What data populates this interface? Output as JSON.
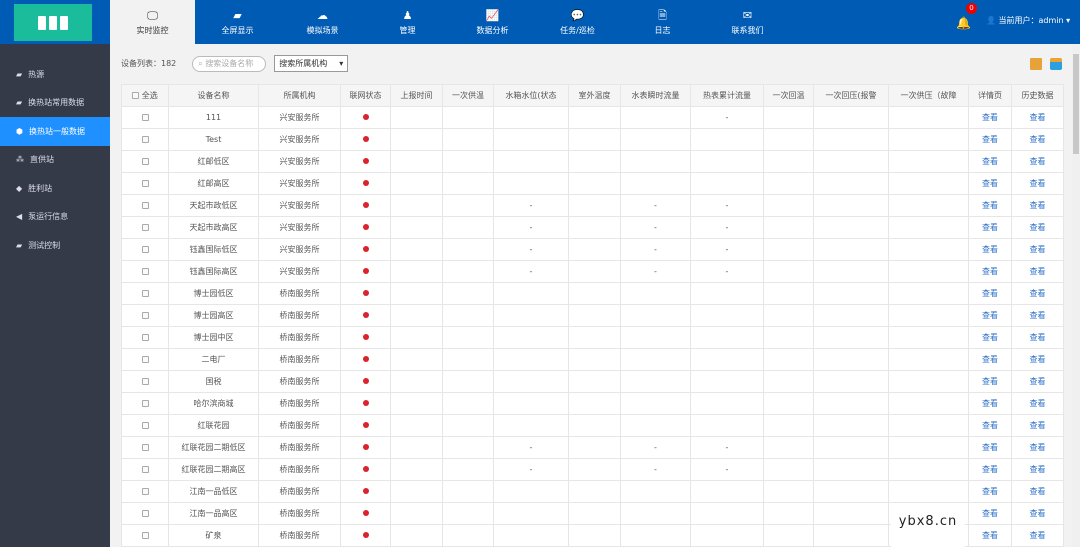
{
  "header": {
    "nav": [
      {
        "label": "实时监控",
        "icon": "monitor-icon",
        "glyph": "🖵"
      },
      {
        "label": "全屏显示",
        "icon": "book-icon",
        "glyph": "▰"
      },
      {
        "label": "模拟场景",
        "icon": "cloud-icon",
        "glyph": "☁"
      },
      {
        "label": "管理",
        "icon": "user-icon",
        "glyph": "♟"
      },
      {
        "label": "数据分析",
        "icon": "chart-icon",
        "glyph": "📈"
      },
      {
        "label": "任务/巡检",
        "icon": "chat-icon",
        "glyph": "💬"
      },
      {
        "label": "日志",
        "icon": "file-icon",
        "glyph": "🗎"
      },
      {
        "label": "联系我们",
        "icon": "mail-icon",
        "glyph": "✉"
      }
    ],
    "notifications": "0",
    "user": "当前用户：admin ▾"
  },
  "sidebar": {
    "items": [
      {
        "label": "热源",
        "glyph": "▰"
      },
      {
        "label": "换热站常用数据",
        "glyph": "▰"
      },
      {
        "label": "换热站一般数据",
        "glyph": "⬢"
      },
      {
        "label": "直供站",
        "glyph": "⁂"
      },
      {
        "label": "胜利站",
        "glyph": "◆"
      },
      {
        "label": "泵运行信息",
        "glyph": "◀"
      },
      {
        "label": "测试控制",
        "glyph": "▰"
      }
    ],
    "active": 2
  },
  "toolbar": {
    "count_label": "设备列表：182",
    "search_placeholder": "搜索设备名称",
    "org_select": "搜索所属机构"
  },
  "table": {
    "select_all": "全选",
    "columns": [
      "设备名称",
      "所属机构",
      "联网状态",
      "上报时间",
      "一次供温",
      "水箱水位(状态",
      "室外温度",
      "水表瞬时流量",
      "热表累计流量",
      "一次回温",
      "一次回压(报警",
      "一次供压（故障",
      "详情页",
      "历史数据"
    ],
    "link": "查看",
    "rows": [
      {
        "name": "111",
        "org": "兴安服务所",
        "dash": [
          8
        ]
      },
      {
        "name": "Test",
        "org": "兴安服务所",
        "dash": []
      },
      {
        "name": "红邮低区",
        "org": "兴安服务所",
        "dash": []
      },
      {
        "name": "红邮高区",
        "org": "兴安服务所",
        "dash": []
      },
      {
        "name": "天起市政低区",
        "org": "兴安服务所",
        "dash": [
          5,
          7,
          8
        ]
      },
      {
        "name": "天起市政高区",
        "org": "兴安服务所",
        "dash": [
          5,
          7,
          8
        ]
      },
      {
        "name": "钰鑫国际低区",
        "org": "兴安服务所",
        "dash": [
          5,
          7,
          8
        ]
      },
      {
        "name": "钰鑫国际高区",
        "org": "兴安服务所",
        "dash": [
          5,
          7,
          8
        ]
      },
      {
        "name": "博士园低区",
        "org": "桥南服务所",
        "dash": []
      },
      {
        "name": "博士园高区",
        "org": "桥南服务所",
        "dash": []
      },
      {
        "name": "博士园中区",
        "org": "桥南服务所",
        "dash": []
      },
      {
        "name": "二电厂",
        "org": "桥南服务所",
        "dash": []
      },
      {
        "name": "国税",
        "org": "桥南服务所",
        "dash": []
      },
      {
        "name": "哈尔滨商城",
        "org": "桥南服务所",
        "dash": []
      },
      {
        "name": "红联花园",
        "org": "桥南服务所",
        "dash": []
      },
      {
        "name": "红联花园二期低区",
        "org": "桥南服务所",
        "dash": [
          5,
          7,
          8
        ]
      },
      {
        "name": "红联花园二期高区",
        "org": "桥南服务所",
        "dash": [
          5,
          7,
          8
        ]
      },
      {
        "name": "江南一品低区",
        "org": "桥南服务所",
        "dash": []
      },
      {
        "name": "江南一品高区",
        "org": "桥南服务所",
        "dash": []
      },
      {
        "name": "矿泉",
        "org": "桥南服务所",
        "dash": []
      }
    ]
  },
  "status_color": "#d9232d",
  "watermark": "ybx8.cn"
}
